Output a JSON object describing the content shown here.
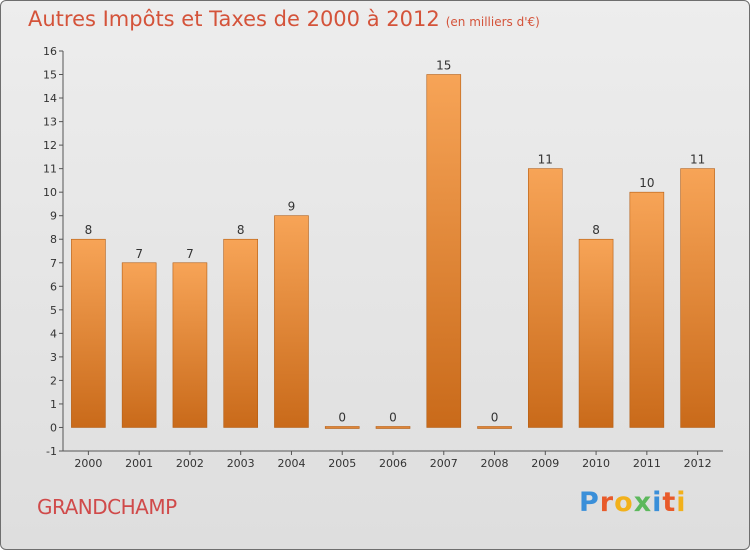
{
  "header": {
    "title": "Autres Impôts et Taxes de 2000 à 2012",
    "subtitle": "(en milliers d'€)"
  },
  "footer": {
    "location": "GRANDCHAMP",
    "logo": "Proxiti"
  },
  "colors": {
    "bar_light": "#f7a457",
    "bar_dark": "#c96a1a",
    "title": "#d4533a",
    "axis_text": "#333333"
  },
  "chart_data": {
    "type": "bar",
    "title": "Autres Impôts et Taxes de 2000 à 2012",
    "subtitle": "(en milliers d'€)",
    "categories": [
      "2000",
      "2001",
      "2002",
      "2003",
      "2004",
      "2005",
      "2006",
      "2007",
      "2008",
      "2009",
      "2010",
      "2011",
      "2012"
    ],
    "values": [
      8,
      7,
      7,
      8,
      9,
      0,
      0,
      15,
      0,
      11,
      8,
      10,
      11
    ],
    "ylim": [
      -1,
      16
    ],
    "yticks": [
      -1,
      0,
      1,
      2,
      3,
      4,
      5,
      6,
      7,
      8,
      9,
      10,
      11,
      12,
      13,
      14,
      15,
      16
    ],
    "grid": false,
    "legend": "none"
  }
}
